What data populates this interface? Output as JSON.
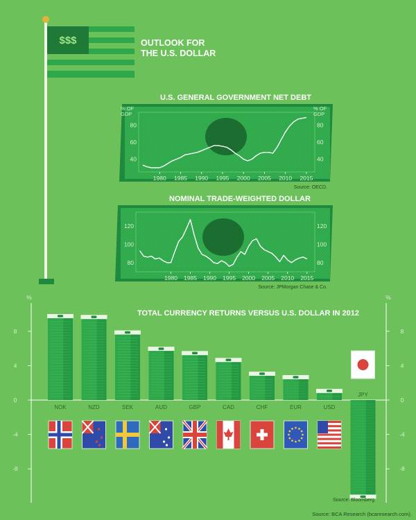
{
  "title": {
    "line1": "OUTLOOK FOR",
    "line2": "THE U.S. DOLLAR",
    "flag_text": "$$$"
  },
  "colors": {
    "background": "#6cc15a",
    "money_dark": "#1e8a3e",
    "money_mid": "#2ea84b",
    "money_light": "#4cc264",
    "line": "#ffffff",
    "emblem": "#1b6e2f"
  },
  "footer": {
    "source": "Source: BCA Research (bcaresearch.com)."
  },
  "chart_data": [
    {
      "type": "line",
      "title": "U.S. GENERAL GOVERNMENT NET DEBT",
      "y_unit_top": "% OF",
      "y_unit_bottom": "GDP",
      "source": "Source: OECD.",
      "xlim": [
        1975,
        2017
      ],
      "ylim": [
        25,
        95
      ],
      "x_ticks": [
        1980,
        1985,
        1990,
        1995,
        2000,
        2005,
        2010,
        2015
      ],
      "y_ticks": [
        40,
        60,
        80
      ],
      "x": [
        1976,
        1977,
        1978,
        1979,
        1980,
        1981,
        1982,
        1983,
        1984,
        1985,
        1986,
        1987,
        1988,
        1989,
        1990,
        1991,
        1992,
        1993,
        1994,
        1995,
        1996,
        1997,
        1998,
        1999,
        2000,
        2001,
        2002,
        2003,
        2004,
        2005,
        2006,
        2007,
        2008,
        2009,
        2010,
        2011,
        2012,
        2013,
        2014,
        2015
      ],
      "values": [
        33,
        31,
        30,
        30,
        30,
        32,
        35,
        38,
        40,
        42,
        45,
        46,
        47,
        48,
        50,
        52,
        54,
        56,
        56,
        55,
        54,
        51,
        47,
        44,
        40,
        38,
        40,
        44,
        47,
        48,
        48,
        47,
        54,
        63,
        72,
        79,
        84,
        87,
        88,
        89
      ]
    },
    {
      "type": "line",
      "title": "NOMINAL TRADE-WEIGHTED DOLLAR",
      "source": "Source: JPMorgan Chase & Co.",
      "xlim": [
        1971,
        2017
      ],
      "ylim": [
        70,
        135
      ],
      "x_ticks": [
        1980,
        1985,
        1990,
        1995,
        2000,
        2005,
        2010,
        2015
      ],
      "y_ticks": [
        80,
        100,
        120
      ],
      "x": [
        1972,
        1973,
        1974,
        1975,
        1976,
        1977,
        1978,
        1979,
        1980,
        1981,
        1982,
        1983,
        1984,
        1985,
        1986,
        1987,
        1988,
        1989,
        1990,
        1991,
        1992,
        1993,
        1994,
        1995,
        1996,
        1997,
        1998,
        1999,
        2000,
        2001,
        2002,
        2003,
        2004,
        2005,
        2006,
        2007,
        2008,
        2009,
        2010,
        2011,
        2012,
        2013,
        2014,
        2015
      ],
      "values": [
        93,
        87,
        86,
        87,
        84,
        85,
        82,
        80,
        80,
        92,
        103,
        108,
        117,
        127,
        110,
        96,
        89,
        87,
        84,
        80,
        79,
        82,
        80,
        76,
        78,
        86,
        92,
        89,
        98,
        104,
        106,
        98,
        94,
        92,
        90,
        86,
        81,
        88,
        83,
        80,
        83,
        85,
        86,
        84
      ]
    },
    {
      "type": "bar",
      "title": "TOTAL CURRENCY RETURNS VERSUS U.S. DOLLAR IN 2012",
      "y_unit": "%",
      "source": "Source: Bloomberg",
      "ylim": [
        -12,
        12
      ],
      "y_ticks": [
        -8,
        -4,
        0,
        4,
        8
      ],
      "categories": [
        "NOK",
        "NZD",
        "SEK",
        "AUD",
        "GBP",
        "CAD",
        "CHF",
        "EUR",
        "USD",
        "JPY"
      ],
      "values": [
        9.6,
        9.5,
        7.7,
        5.8,
        5.3,
        4.5,
        2.9,
        2.5,
        0.9,
        -11.0
      ],
      "flags": [
        "norway-flag",
        "new-zealand-flag",
        "sweden-flag",
        "australia-flag",
        "uk-flag",
        "canada-flag",
        "switzerland-flag",
        "eu-flag",
        "usa-flag",
        "japan-flag"
      ]
    }
  ]
}
